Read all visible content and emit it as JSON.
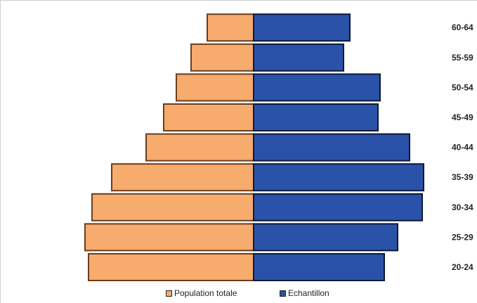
{
  "chart_data": {
    "type": "bar",
    "orientation": "horizontal-pyramid",
    "categories": [
      "20-24",
      "25-29",
      "30-34",
      "35-39",
      "40-44",
      "45-49",
      "50-54",
      "55-59",
      "60-64"
    ],
    "series": [
      {
        "name": "Population totale",
        "side": "left",
        "color": "#f7ab6c",
        "values": [
          235,
          240,
          230,
          202,
          153,
          128,
          110,
          89,
          66
        ]
      },
      {
        "name": "Echantillon",
        "side": "right",
        "color": "#2a52a8",
        "values": [
          186,
          205,
          240,
          242,
          222,
          177,
          180,
          128,
          137
        ]
      }
    ],
    "title": "",
    "xlabel": "",
    "ylabel": "",
    "grid": false,
    "legend_position": "bottom",
    "xlim": [
      -250,
      250
    ]
  }
}
